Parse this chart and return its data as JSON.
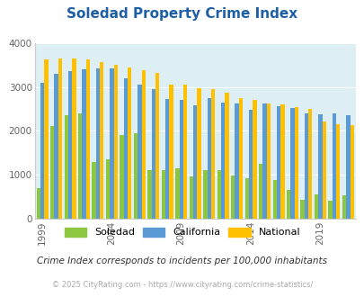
{
  "title": "Soledad Property Crime Index",
  "subtitle": "Crime Index corresponds to incidents per 100,000 inhabitants",
  "footer": "© 2025 CityRating.com - https://www.cityrating.com/crime-statistics/",
  "years": [
    1999,
    2000,
    2001,
    2002,
    2003,
    2004,
    2005,
    2006,
    2007,
    2008,
    2009,
    2010,
    2011,
    2012,
    2013,
    2014,
    2015,
    2016,
    2017,
    2018,
    2019,
    2020,
    2021
  ],
  "soledad": [
    680,
    2100,
    2350,
    2400,
    1280,
    1350,
    1900,
    1950,
    1100,
    1100,
    1150,
    960,
    1100,
    1100,
    970,
    920,
    1250,
    870,
    650,
    420,
    550,
    400,
    530
  ],
  "california": [
    3100,
    3300,
    3350,
    3400,
    3430,
    3430,
    3200,
    3050,
    2950,
    2720,
    2700,
    2580,
    2750,
    2650,
    2620,
    2470,
    2620,
    2560,
    2510,
    2400,
    2380,
    2390,
    2360
  ],
  "national": [
    3620,
    3650,
    3650,
    3620,
    3560,
    3500,
    3440,
    3380,
    3310,
    3050,
    3050,
    2970,
    2950,
    2870,
    2750,
    2700,
    2620,
    2600,
    2530,
    2490,
    2200,
    2150,
    2120
  ],
  "soledad_color": "#8dc63f",
  "california_color": "#5b9bd5",
  "national_color": "#ffc000",
  "background_color": "#ddeef5",
  "ylim": [
    0,
    4000
  ],
  "yticks": [
    0,
    1000,
    2000,
    3000,
    4000
  ],
  "title_color": "#1f5fa6",
  "subtitle_color": "#333333",
  "footer_color": "#aaaaaa",
  "legend_labels": [
    "Soledad",
    "California",
    "National"
  ],
  "tick_years": [
    1999,
    2004,
    2009,
    2014,
    2019
  ]
}
